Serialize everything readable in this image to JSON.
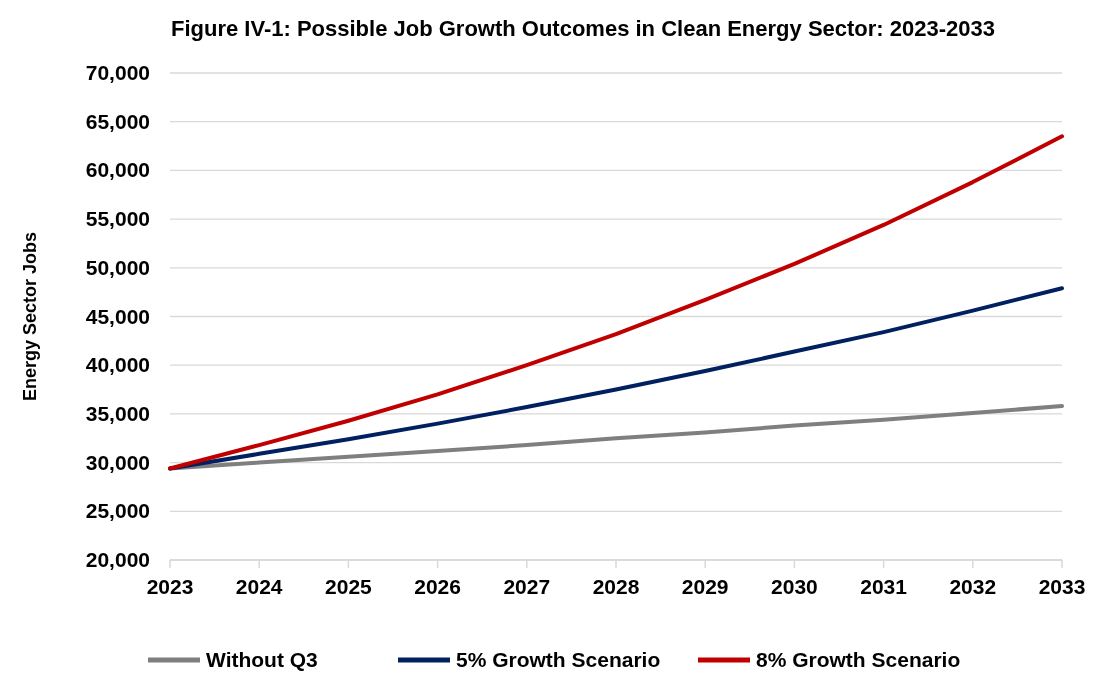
{
  "chart_data": {
    "type": "line",
    "title": "Figure IV-1: Possible Job Growth Outcomes in Clean Energy Sector: 2023-2033",
    "ylabel": "Energy Sector Jobs",
    "x": [
      2023,
      2024,
      2025,
      2026,
      2027,
      2028,
      2029,
      2030,
      2031,
      2032,
      2033
    ],
    "series": [
      {
        "name": "Without Q3",
        "color": "#7f7f7f",
        "values": [
          29400,
          30000,
          30600,
          31200,
          31800,
          32500,
          33100,
          33800,
          34400,
          35100,
          35800
        ]
      },
      {
        "name": "5% Growth Scenario",
        "color": "#002060",
        "values": [
          29400,
          30900,
          32400,
          34000,
          35700,
          37500,
          39400,
          41400,
          43400,
          45600,
          47900
        ]
      },
      {
        "name": "8% Growth Scenario",
        "color": "#c00000",
        "values": [
          29400,
          31800,
          34300,
          37000,
          40000,
          43200,
          46700,
          50400,
          54400,
          58800,
          63500
        ]
      }
    ],
    "xlim": [
      2023,
      2033
    ],
    "xticks": [
      2023,
      2024,
      2025,
      2026,
      2027,
      2028,
      2029,
      2030,
      2031,
      2032,
      2033
    ],
    "ylim": [
      20000,
      70000
    ],
    "yticks": [
      {
        "value": 20000,
        "label": "20,000"
      },
      {
        "value": 25000,
        "label": "25,000"
      },
      {
        "value": 30000,
        "label": "30,000"
      },
      {
        "value": 35000,
        "label": "35,000"
      },
      {
        "value": 40000,
        "label": "40,000"
      },
      {
        "value": 45000,
        "label": "45,000"
      },
      {
        "value": 50000,
        "label": "50,000"
      },
      {
        "value": 55000,
        "label": "55,000"
      },
      {
        "value": 60000,
        "label": "60,000"
      },
      {
        "value": 65000,
        "label": "65,000"
      },
      {
        "value": 70000,
        "label": "70,000"
      }
    ],
    "grid": "y",
    "legend": "bottom",
    "marker": "none",
    "line_style": "solid"
  }
}
